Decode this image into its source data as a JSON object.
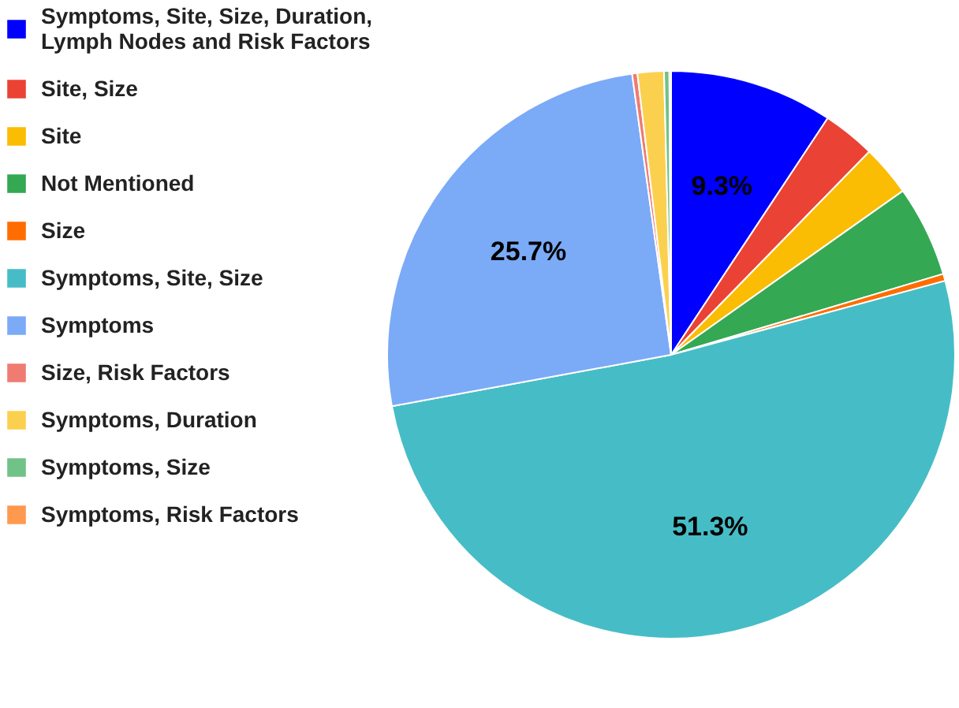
{
  "chart_data": {
    "type": "pie",
    "categories": [
      "Symptoms, Site, Size, Duration, Lymph Nodes and Risk Factors",
      "Site, Size",
      "Site",
      "Not Mentioned",
      "Size",
      "Symptoms, Site, Size",
      "Symptoms",
      "Size, Risk Factors",
      "Symptoms, Duration",
      "Symptoms, Size",
      "Symptoms, Risk Factors"
    ],
    "values": [
      9.3,
      3.0,
      2.9,
      5.2,
      0.4,
      51.3,
      25.7,
      0.3,
      1.5,
      0.3,
      0.1
    ],
    "colors": [
      "#0000ff",
      "#ea4335",
      "#fbbc04",
      "#34a853",
      "#ff6d01",
      "#46bdc6",
      "#7baaf7",
      "#f07b72",
      "#fcd04f",
      "#71c287",
      "#ff994d"
    ],
    "value_labels": [
      "9.3%",
      null,
      null,
      null,
      null,
      "51.3%",
      "25.7%",
      null,
      null,
      null,
      null
    ],
    "legend": "left"
  }
}
